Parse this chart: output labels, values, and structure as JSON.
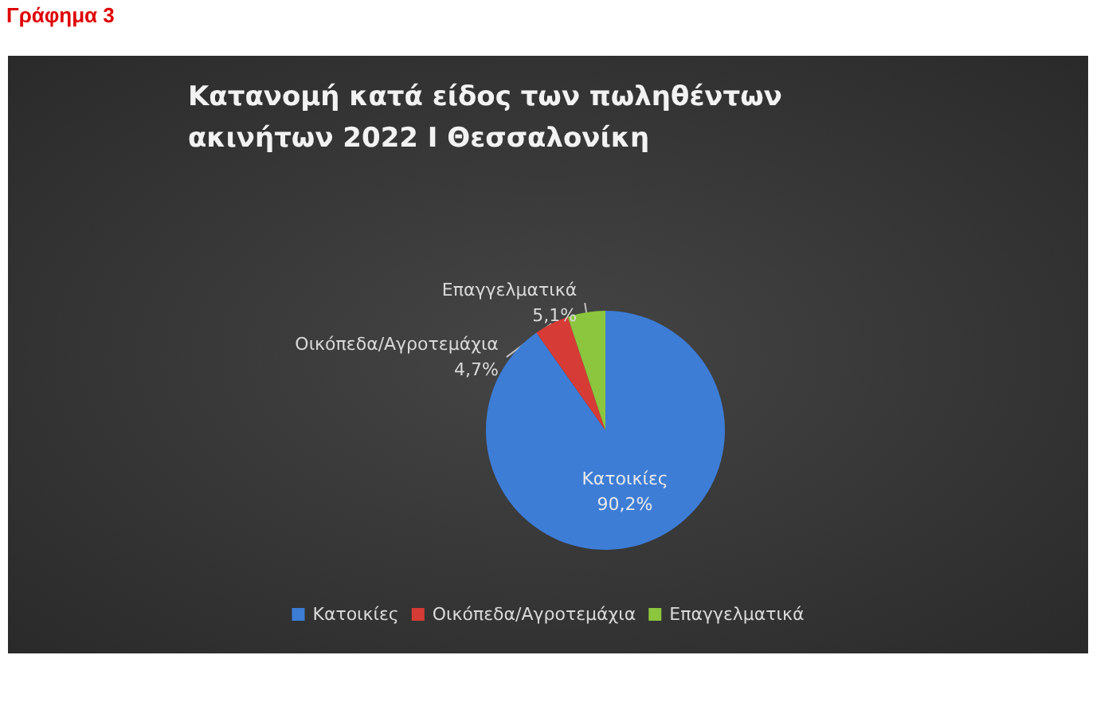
{
  "chart_data": {
    "type": "pie",
    "title": "Κατανομή κατά είδος των πωληθέντων ακινήτων 2022 Ι Θεσσαλονίκη",
    "annotations": [
      "Γράφημα 3"
    ],
    "categories": [
      "Κατοικίες",
      "Οικόπεδα/Αγροτεμάχια",
      "Επαγγελματικά"
    ],
    "values": [
      90.2,
      4.7,
      5.1
    ],
    "colors": [
      "#3d7dd6",
      "#d63b35",
      "#8cc63f"
    ],
    "value_labels": [
      "90,2%",
      "4,7%",
      "5,1%"
    ],
    "legend": "bottom"
  }
}
